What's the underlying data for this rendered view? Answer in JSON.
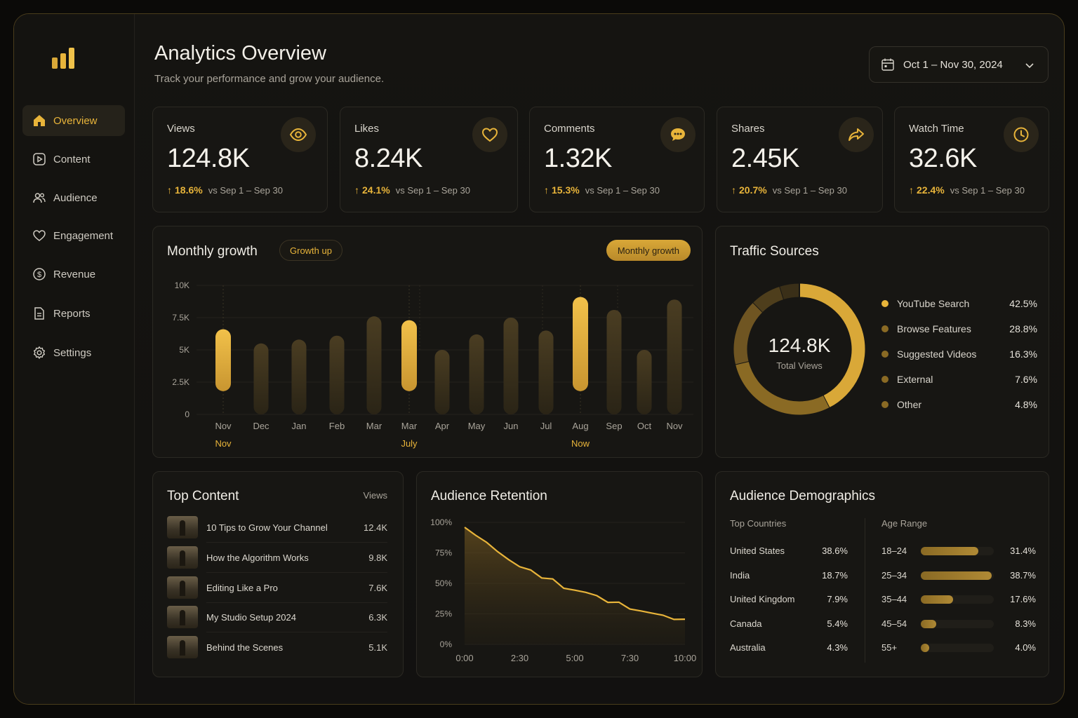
{
  "sidebar": {
    "items": [
      {
        "label": "Overview",
        "icon": "home-icon",
        "active": true
      },
      {
        "label": "Content",
        "icon": "play-square-icon"
      },
      {
        "label": "Audience",
        "icon": "users-icon"
      },
      {
        "label": "Engagement",
        "icon": "heart-icon"
      },
      {
        "label": "Revenue",
        "icon": "dollar-circle-icon"
      },
      {
        "label": "Reports",
        "icon": "document-icon"
      },
      {
        "label": "Settings",
        "icon": "gear-icon"
      }
    ]
  },
  "header": {
    "title": "Analytics Overview",
    "subtitle": "Track your performance and grow your audience.",
    "date_range": "Oct 1 – Nov 30, 2024"
  },
  "kpis": [
    {
      "label": "Views",
      "value": "124.8K",
      "delta": "18.6%",
      "compare": "vs Sep 1 – Sep 30",
      "icon": "eye-icon"
    },
    {
      "label": "Likes",
      "value": "8.24K",
      "delta": "24.1%",
      "compare": "vs Sep 1 – Sep 30",
      "icon": "heart-icon"
    },
    {
      "label": "Comments",
      "value": "1.32K",
      "delta": "15.3%",
      "compare": "vs Sep 1 – Sep 30",
      "icon": "chat-bubble-icon"
    },
    {
      "label": "Shares",
      "value": "2.45K",
      "delta": "20.7%",
      "compare": "vs Sep 1 – Sep 30",
      "icon": "share-arrow-icon"
    },
    {
      "label": "Watch Time",
      "value": "32.6K",
      "delta": "22.4%",
      "compare": "vs Sep 1 – Sep 30",
      "icon": "clock-icon"
    }
  ],
  "growth": {
    "title": "Monthly growth",
    "badge": "Growth up",
    "toggle": "Monthly growth"
  },
  "traffic": {
    "title": "Traffic Sources",
    "center_value": "124.8K",
    "center_label": "Total Views"
  },
  "top_content": {
    "title": "Top Content",
    "column": "Views",
    "items": [
      {
        "title": "10 Tips to Grow Your Channel",
        "views": "12.4K"
      },
      {
        "title": "How the Algorithm Works",
        "views": "9.8K"
      },
      {
        "title": "Editing Like a Pro",
        "views": "7.6K"
      },
      {
        "title": "My Studio Setup 2024",
        "views": "6.3K"
      },
      {
        "title": "Behind the Scenes",
        "views": "5.1K"
      }
    ]
  },
  "retention": {
    "title": "Audience Retention"
  },
  "demographics": {
    "title": "Audience Demographics",
    "countries_label": "Top Countries",
    "age_label": "Age Range",
    "countries": [
      {
        "name": "United States",
        "pct": "38.6%"
      },
      {
        "name": "India",
        "pct": "18.7%"
      },
      {
        "name": "United Kingdom",
        "pct": "7.9%"
      },
      {
        "name": "Canada",
        "pct": "5.4%"
      },
      {
        "name": "Australia",
        "pct": "4.3%"
      }
    ],
    "ages": [
      {
        "range": "18–24",
        "pct": "31.4%",
        "value": 31.4
      },
      {
        "range": "25–34",
        "pct": "38.7%",
        "value": 38.7
      },
      {
        "range": "35–44",
        "pct": "17.6%",
        "value": 17.6
      },
      {
        "range": "45–54",
        "pct": "8.3%",
        "value": 8.3
      },
      {
        "range": "55+",
        "pct": "4.0%",
        "value": 4.0
      }
    ]
  },
  "colors": {
    "accent": "#e8b43a",
    "accent_dark": "#8a6a24",
    "background": "#121110",
    "card": "#171613"
  },
  "chart_data": [
    {
      "type": "bar",
      "title": "Monthly growth",
      "categories": [
        "Nov",
        "Dec",
        "Jan",
        "Feb",
        "Mar",
        "Mar",
        "Apr",
        "May",
        "Jun",
        "Jul",
        "Aug",
        "Sep",
        "Oct",
        "Nov"
      ],
      "markers": [
        "Nov",
        "",
        "",
        "",
        "",
        "July",
        "",
        "",
        "",
        "",
        "Now",
        "",
        "",
        ""
      ],
      "highlighted": [
        true,
        false,
        false,
        false,
        false,
        true,
        false,
        false,
        false,
        false,
        true,
        false,
        false,
        false
      ],
      "series": [
        {
          "low": [
            1800,
            0,
            0,
            0,
            0,
            1800,
            0,
            0,
            0,
            0,
            1800,
            0,
            0,
            0
          ],
          "high": [
            6600,
            5500,
            5800,
            6100,
            7600,
            7300,
            5000,
            6200,
            7500,
            6500,
            9100,
            8100,
            5000,
            8900
          ]
        }
      ],
      "yticks": [
        "0",
        "2.5K",
        "5K",
        "7.5K",
        "10K"
      ],
      "ylim": [
        0,
        10000
      ],
      "grid": true
    },
    {
      "type": "pie",
      "title": "Traffic Sources",
      "labels": [
        "YouTube Search",
        "Browse Features",
        "Suggested Videos",
        "External",
        "Other"
      ],
      "values": [
        42.5,
        28.8,
        16.3,
        7.6,
        4.8
      ],
      "value_labels": [
        "42.5%",
        "28.8%",
        "16.3%",
        "7.6%",
        "4.8%"
      ],
      "colors": [
        "#d9a838",
        "#8a6a24",
        "#6f5522",
        "#4e3e1c",
        "#3a2f18"
      ],
      "legend": "right"
    },
    {
      "type": "area",
      "title": "Audience Retention",
      "x": [
        0,
        0.5,
        1,
        1.5,
        2,
        2.5,
        3,
        3.5,
        4,
        4.5,
        5,
        5.5,
        6,
        6.5,
        7,
        7.5,
        8,
        8.5,
        9,
        9.5,
        10
      ],
      "y": [
        96,
        90,
        83,
        76,
        70,
        63,
        61,
        55,
        53,
        46,
        45,
        42,
        40,
        35,
        34,
        29,
        28,
        25,
        24,
        21,
        20
      ],
      "xticks": [
        "0:00",
        "2:30",
        "5:00",
        "7:30",
        "10:00"
      ],
      "yticks": [
        "0%",
        "25%",
        "50%",
        "75%",
        "100%"
      ],
      "xlim": [
        0,
        10
      ],
      "ylim": [
        0,
        100
      ],
      "grid": true
    }
  ]
}
